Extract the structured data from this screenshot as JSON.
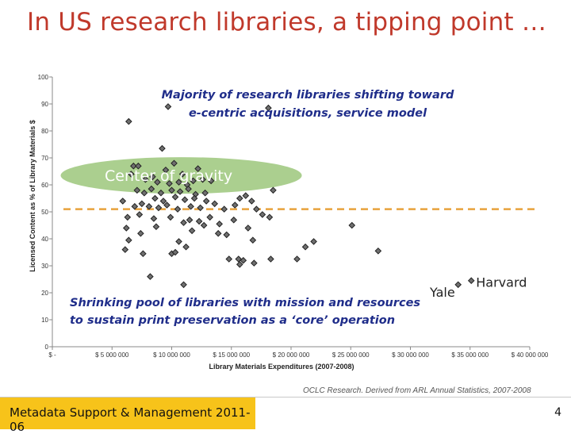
{
  "slide": {
    "title": "In US research libraries, a tipping point …",
    "source": "OCLC Research. Derived from ARL Annual Statistics, 2007-2008",
    "footer": "Metadata Support & Management 2011-06",
    "page_number": "4"
  },
  "colors": {
    "title": "#c0392b",
    "marker": "#222222",
    "threshold_line": "#e8a23c",
    "gravity_ellipse": "#8fbf6a",
    "annotation": "#1f2d8a",
    "footer_accent": "#f7c31a"
  },
  "chart_data": {
    "type": "scatter",
    "xlabel": "Library Materials Expenditures (2007-2008)",
    "ylabel": "Licensed Content as % of Library Materials $",
    "xlim": [
      0,
      40000000
    ],
    "ylim": [
      0,
      100
    ],
    "x_ticks": [
      0,
      5000000,
      10000000,
      15000000,
      20000000,
      25000000,
      30000000,
      35000000,
      40000000
    ],
    "x_tick_labels": [
      "$ -",
      "$ 5 000 000",
      "$ 10 000 000",
      "$ 15 000 000",
      "$ 20 000 000",
      "$ 25 000 000",
      "$ 30 000 000",
      "$ 35 000 000",
      "$ 40 000 000"
    ],
    "y_ticks": [
      0,
      10,
      20,
      30,
      40,
      50,
      60,
      70,
      80,
      90,
      100
    ],
    "y_tick_labels": [
      "0",
      "10",
      "20",
      "30",
      "40",
      "50",
      "60",
      "70",
      "80",
      "90",
      "100"
    ],
    "threshold_y": 51,
    "annotations": {
      "top": [
        "Majority of research libraries shifting toward",
        "e-centric acquisitions, service model"
      ],
      "gravity": "Center of gravity",
      "bottom": [
        "Shrinking pool of libraries with mission and resources",
        "to sustain print preservation as a ‘core’ operation"
      ]
    },
    "labeled_points": [
      {
        "label": "Yale",
        "x": 34000000,
        "y": 23
      },
      {
        "label": "Harvard",
        "x": 35100000,
        "y": 24.5
      }
    ],
    "points": [
      [
        9700000,
        89
      ],
      [
        6400000,
        83.5
      ],
      [
        18100000,
        88.5
      ],
      [
        9200000,
        73.5
      ],
      [
        10200000,
        68
      ],
      [
        6800000,
        67
      ],
      [
        7200000,
        67
      ],
      [
        6600000,
        64
      ],
      [
        8400000,
        63
      ],
      [
        9500000,
        65.5
      ],
      [
        7800000,
        62
      ],
      [
        8800000,
        61
      ],
      [
        9800000,
        60.5
      ],
      [
        10600000,
        61
      ],
      [
        11300000,
        60
      ],
      [
        11800000,
        61.5
      ],
      [
        12600000,
        62
      ],
      [
        13300000,
        61.5
      ],
      [
        10900000,
        64
      ],
      [
        12200000,
        66
      ],
      [
        7100000,
        58
      ],
      [
        7700000,
        57
      ],
      [
        8300000,
        58.5
      ],
      [
        9100000,
        57
      ],
      [
        10000000,
        58
      ],
      [
        10700000,
        57.5
      ],
      [
        11400000,
        58.5
      ],
      [
        12000000,
        56.5
      ],
      [
        12800000,
        57
      ],
      [
        8600000,
        55
      ],
      [
        9300000,
        54
      ],
      [
        10300000,
        55.5
      ],
      [
        11100000,
        54.5
      ],
      [
        11900000,
        55
      ],
      [
        12900000,
        54
      ],
      [
        15700000,
        55
      ],
      [
        16200000,
        56
      ],
      [
        16700000,
        54
      ],
      [
        18500000,
        58
      ],
      [
        5900000,
        54
      ],
      [
        6900000,
        52
      ],
      [
        7500000,
        53
      ],
      [
        8100000,
        52
      ],
      [
        8900000,
        51.5
      ],
      [
        9600000,
        52.5
      ],
      [
        10500000,
        51
      ],
      [
        11600000,
        52
      ],
      [
        12400000,
        51.5
      ],
      [
        13600000,
        53
      ],
      [
        14400000,
        51
      ],
      [
        15300000,
        52.5
      ],
      [
        17100000,
        51
      ],
      [
        6300000,
        48
      ],
      [
        7300000,
        49
      ],
      [
        8500000,
        47.5
      ],
      [
        9900000,
        48
      ],
      [
        11000000,
        46
      ],
      [
        11500000,
        47
      ],
      [
        12300000,
        46.5
      ],
      [
        13200000,
        48
      ],
      [
        14000000,
        45.5
      ],
      [
        15200000,
        47
      ],
      [
        16400000,
        44
      ],
      [
        17600000,
        49
      ],
      [
        18200000,
        48
      ],
      [
        6200000,
        44
      ],
      [
        7400000,
        42
      ],
      [
        8700000,
        44.5
      ],
      [
        11700000,
        43
      ],
      [
        12700000,
        45
      ],
      [
        13900000,
        42
      ],
      [
        14600000,
        41.5
      ],
      [
        11200000,
        37
      ],
      [
        16800000,
        39.5
      ],
      [
        10600000,
        39
      ],
      [
        6400000,
        39.5
      ],
      [
        6100000,
        36
      ],
      [
        7600000,
        34.5
      ],
      [
        10000000,
        34.5
      ],
      [
        10300000,
        35
      ],
      [
        14800000,
        32.5
      ],
      [
        15600000,
        32.5
      ],
      [
        15700000,
        30.5
      ],
      [
        16000000,
        32
      ],
      [
        16900000,
        31
      ],
      [
        18300000,
        32.5
      ],
      [
        20500000,
        32.5
      ],
      [
        21200000,
        37
      ],
      [
        21900000,
        39
      ],
      [
        25100000,
        45
      ],
      [
        27300000,
        35.5
      ],
      [
        8200000,
        26
      ],
      [
        11000000,
        23
      ]
    ]
  }
}
